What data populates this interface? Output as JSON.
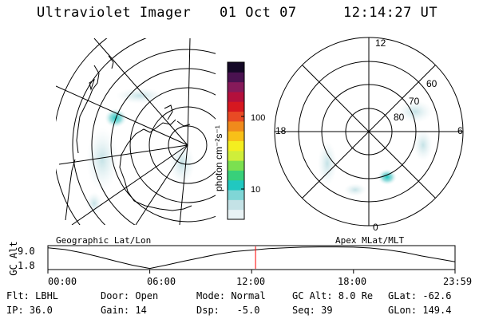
{
  "header": {
    "instrument": "Ultraviolet Imager",
    "date": "01 Oct 07",
    "time": "12:14:27 UT"
  },
  "colorbar": {
    "label": "photon cm⁻²s⁻¹",
    "scale": "log",
    "ticks": [
      "100",
      "10"
    ],
    "palette": [
      "#e8f2f4",
      "#c4e2e6",
      "#7fd6d6",
      "#21c8c0",
      "#38d07a",
      "#7be050",
      "#cfee3a",
      "#f4ee20",
      "#f8c018",
      "#f08a1c",
      "#e84a24",
      "#d61820",
      "#b4103c",
      "#861a5a",
      "#4a1250",
      "#140826"
    ]
  },
  "left_panel": {
    "caption": "Geographic Lat/Lon"
  },
  "right_panel": {
    "caption": "Apex MLat/MLT",
    "mlt_labels": {
      "top": "12",
      "bottom": "0",
      "left": "18",
      "right": "6"
    },
    "lat_labels": [
      "60",
      "70",
      "80"
    ]
  },
  "timeline": {
    "axis_label": "GC Alt",
    "y_ticks": [
      "9.0",
      "1.8"
    ],
    "x_ticks": [
      "00:00",
      "06:00",
      "12:00",
      "18:00",
      "23:59"
    ],
    "current_time_marker": "12:14"
  },
  "status": {
    "filter": "Flt: LBHL",
    "door": "Door: Open",
    "mode": "Mode: Normal",
    "gc_alt": "GC Alt: 8.0 Re",
    "glat": "GLat: -62.6",
    "ip": "IP: 36.0",
    "gain": "Gain: 14",
    "dsp": "Dsp:   -5.0",
    "seq": "Seq: 39",
    "glon": "GLon: 149.4"
  },
  "chart_data": {
    "type": "line",
    "xlabel": "",
    "ylabel": "GC Alt",
    "series": [
      {
        "x": [
          "00:00",
          "01:00",
          "02:00",
          "03:00",
          "04:00",
          "05:00",
          "06:00",
          "07:00",
          "08:00",
          "09:00",
          "10:00",
          "11:00",
          "12:00",
          "13:00",
          "14:00",
          "15:00",
          "16:00",
          "17:00",
          "18:00",
          "19:00",
          "20:00",
          "21:00",
          "22:00",
          "23:59"
        ],
        "values": [
          9.0,
          8.4,
          7.3,
          5.9,
          4.4,
          3.0,
          1.9,
          3.1,
          4.4,
          5.6,
          6.8,
          7.7,
          8.2,
          8.7,
          9.0,
          9.2,
          9.3,
          9.3,
          9.2,
          8.9,
          8.3,
          7.4,
          6.2,
          4.2
        ]
      }
    ],
    "marker_x": "12:14"
  }
}
